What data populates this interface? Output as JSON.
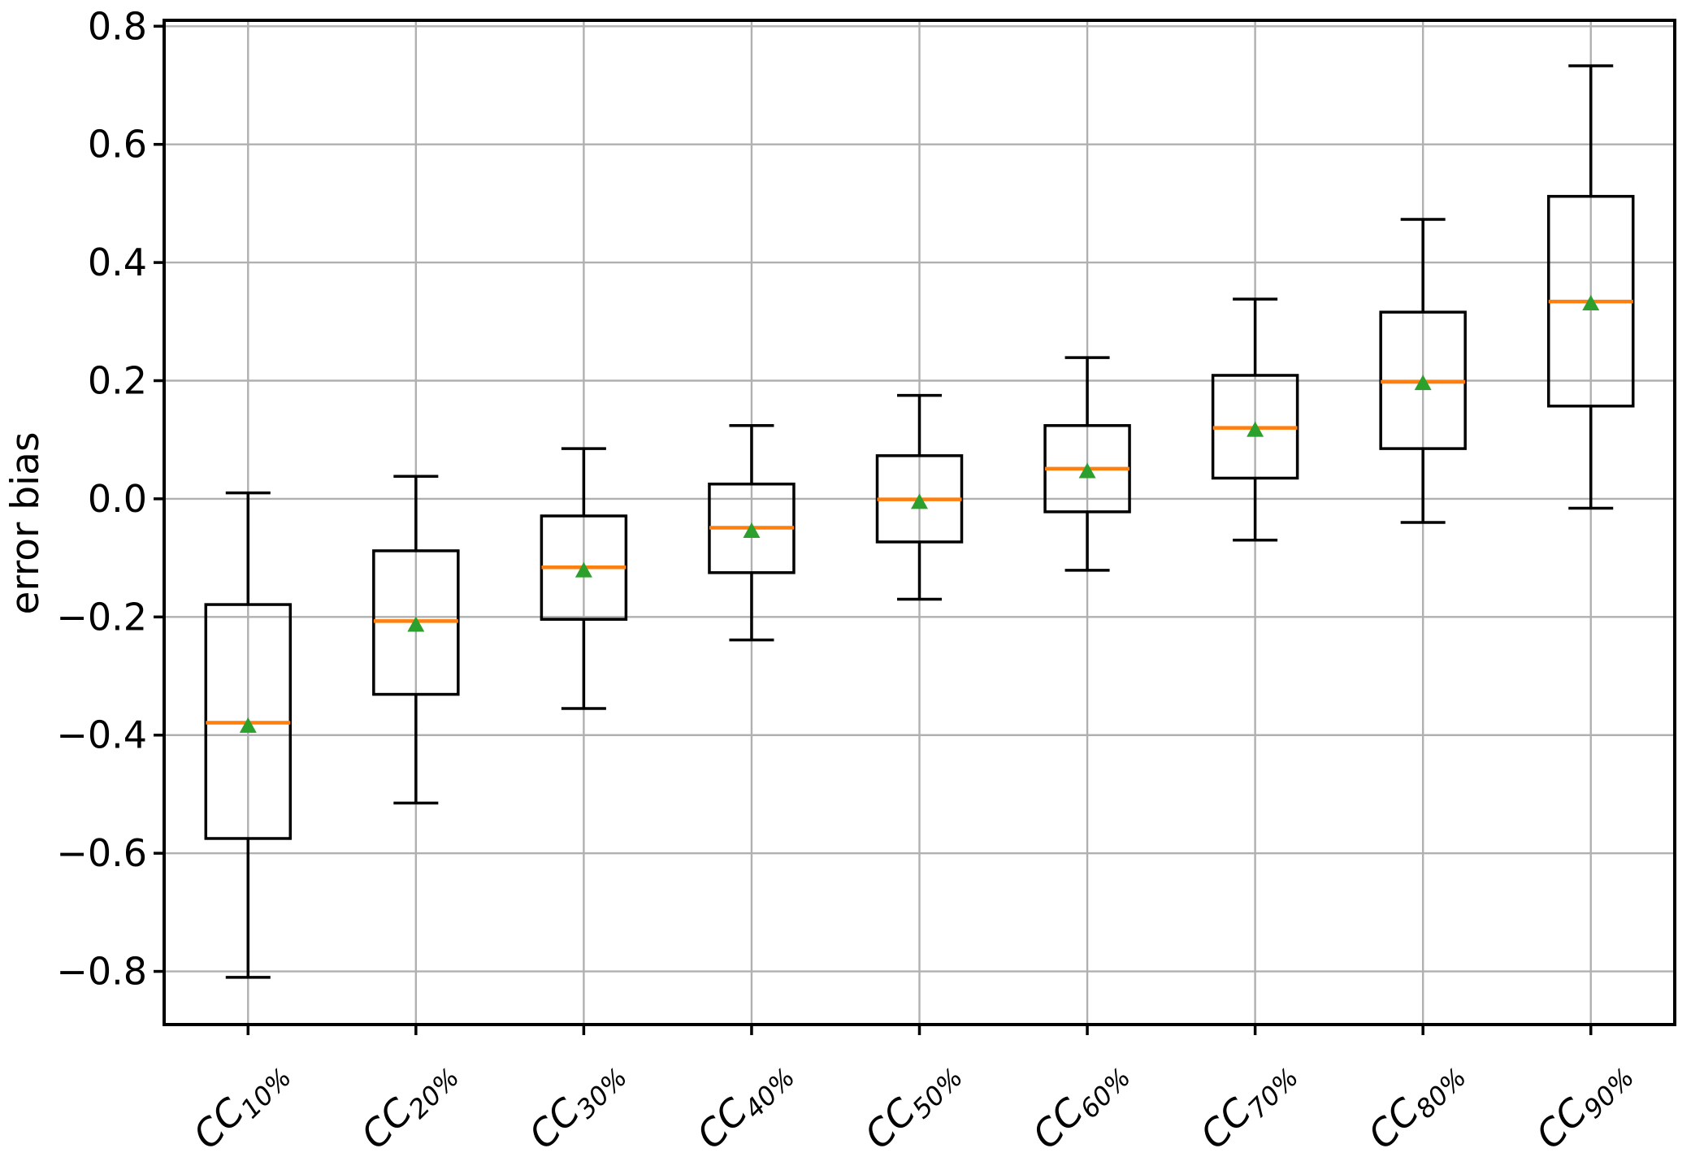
{
  "figure": {
    "background": "#ffffff"
  },
  "chart_data": {
    "type": "boxplot",
    "title": "",
    "xlabel": "",
    "ylabel": "error bias",
    "ylim": [
      -0.89,
      0.81
    ],
    "yticks": [
      0.8,
      0.6,
      0.4,
      0.2,
      0.0,
      -0.2,
      -0.4,
      -0.6,
      -0.8
    ],
    "grid": true,
    "legend": "none",
    "colors": {
      "box_line": "#000000",
      "whisker_line": "#000000",
      "median_line": "#ff7f0e",
      "mean_marker": "#2ca02c",
      "grid_line": "#b0b0b0",
      "spine": "#000000",
      "background": "#ffffff"
    },
    "categories": [
      "CC_10%",
      "CC_20%",
      "CC_30%",
      "CC_40%",
      "CC_50%",
      "CC_60%",
      "CC_70%",
      "CC_80%",
      "CC_90%"
    ],
    "boxes": [
      {
        "label": "CC_10%",
        "label_base": "CC",
        "label_sub": "10%",
        "whislo": -0.81,
        "q1": -0.575,
        "med": -0.379,
        "mean": -0.383,
        "q3": -0.179,
        "whishi": 0.01
      },
      {
        "label": "CC_20%",
        "label_base": "CC",
        "label_sub": "20%",
        "whislo": -0.515,
        "q1": -0.331,
        "med": -0.207,
        "mean": -0.212,
        "q3": -0.088,
        "whishi": 0.038
      },
      {
        "label": "CC_30%",
        "label_base": "CC",
        "label_sub": "30%",
        "whislo": -0.355,
        "q1": -0.204,
        "med": -0.116,
        "mean": -0.12,
        "q3": -0.029,
        "whishi": 0.085
      },
      {
        "label": "CC_40%",
        "label_base": "CC",
        "label_sub": "40%",
        "whislo": -0.239,
        "q1": -0.125,
        "med": -0.049,
        "mean": -0.053,
        "q3": 0.025,
        "whishi": 0.124
      },
      {
        "label": "CC_50%",
        "label_base": "CC",
        "label_sub": "50%",
        "whislo": -0.17,
        "q1": -0.073,
        "med": -0.001,
        "mean": -0.004,
        "q3": 0.073,
        "whishi": 0.175
      },
      {
        "label": "CC_60%",
        "label_base": "CC",
        "label_sub": "60%",
        "whislo": -0.121,
        "q1": -0.022,
        "med": 0.051,
        "mean": 0.048,
        "q3": 0.124,
        "whishi": 0.239
      },
      {
        "label": "CC_70%",
        "label_base": "CC",
        "label_sub": "70%",
        "whislo": -0.07,
        "q1": 0.035,
        "med": 0.12,
        "mean": 0.118,
        "q3": 0.209,
        "whishi": 0.338
      },
      {
        "label": "CC_80%",
        "label_base": "CC",
        "label_sub": "80%",
        "whislo": -0.04,
        "q1": 0.085,
        "med": 0.198,
        "mean": 0.197,
        "q3": 0.316,
        "whishi": 0.473
      },
      {
        "label": "CC_90%",
        "label_base": "CC",
        "label_sub": "90%",
        "whislo": -0.016,
        "q1": 0.157,
        "med": 0.334,
        "mean": 0.332,
        "q3": 0.512,
        "whishi": 0.733
      }
    ]
  }
}
